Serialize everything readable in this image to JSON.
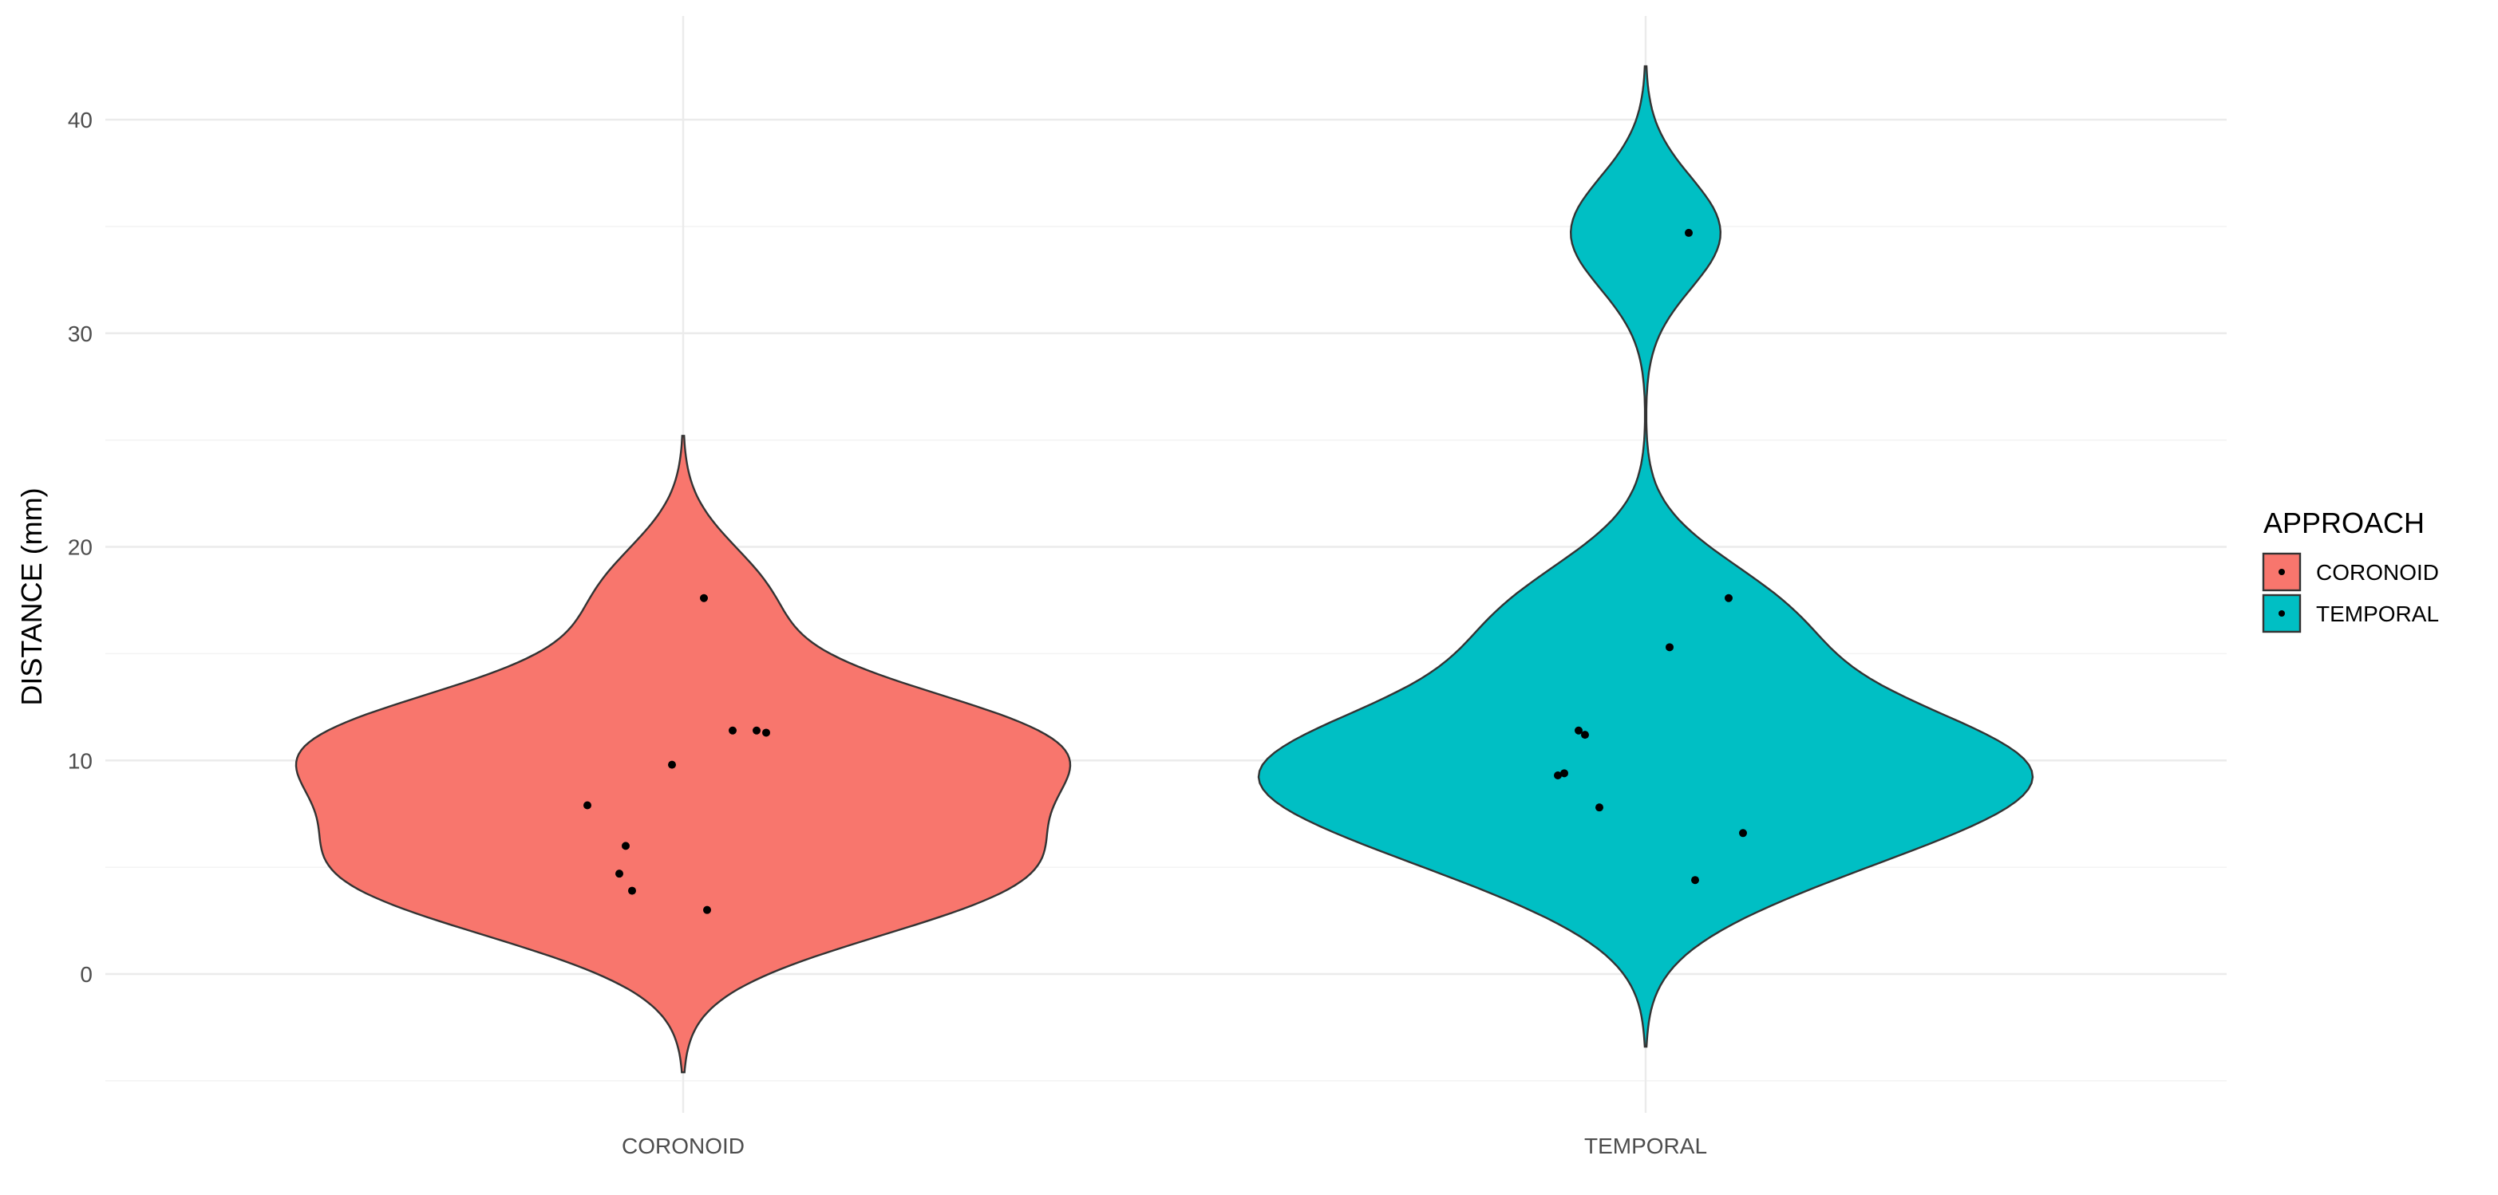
{
  "chart_data": {
    "type": "violin",
    "ylabel": "DISTANCE (mm)",
    "categories": [
      "CORONOID",
      "TEMPORAL"
    ],
    "y_ticks": [
      0,
      10,
      20,
      30,
      40
    ],
    "ylim": [
      -5,
      45
    ],
    "grid": true,
    "legend": {
      "title": "APPROACH",
      "position": "right",
      "entries": [
        {
          "label": "CORONOID",
          "color": "#F8766D"
        },
        {
          "label": "TEMPORAL",
          "color": "#00BFC4"
        }
      ]
    },
    "series": [
      {
        "name": "CORONOID",
        "color": "#F8766D",
        "points": [
          17.6,
          11.4,
          11.4,
          11.3,
          9.8,
          7.9,
          6.0,
          4.7,
          3.9,
          3.0
        ],
        "range": [
          -4.6,
          25.2
        ]
      },
      {
        "name": "TEMPORAL",
        "color": "#00BFC4",
        "points": [
          34.7,
          17.6,
          15.3,
          11.4,
          11.2,
          9.4,
          9.3,
          7.8,
          6.6,
          4.4
        ],
        "range": [
          -3.4,
          42.5
        ]
      }
    ]
  }
}
